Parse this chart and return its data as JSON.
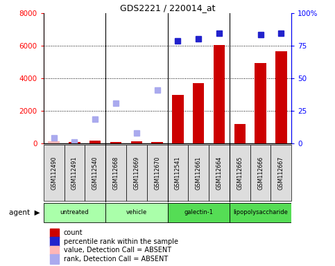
{
  "title": "GDS2221 / 220014_at",
  "samples": [
    "GSM112490",
    "GSM112491",
    "GSM112540",
    "GSM112668",
    "GSM112669",
    "GSM112670",
    "GSM112541",
    "GSM112661",
    "GSM112664",
    "GSM112665",
    "GSM112666",
    "GSM112667"
  ],
  "count_values": [
    150,
    80,
    200,
    80,
    150,
    80,
    3000,
    3700,
    6050,
    1200,
    4950,
    5650
  ],
  "count_absent": [
    true,
    false,
    false,
    false,
    false,
    false,
    false,
    false,
    false,
    false,
    false,
    false
  ],
  "percentile_values": [
    null,
    null,
    null,
    null,
    null,
    null,
    79.0,
    80.5,
    84.5,
    null,
    83.5,
    84.5
  ],
  "rank_absent_values": [
    4.5,
    1.5,
    19.0,
    31.0,
    8.0,
    41.0,
    null,
    null,
    null,
    null,
    null,
    null
  ],
  "ylim_left": [
    0,
    8000
  ],
  "ylim_right": [
    0,
    100
  ],
  "yticks_left": [
    0,
    2000,
    4000,
    6000,
    8000
  ],
  "yticks_right": [
    0,
    25,
    50,
    75,
    100
  ],
  "left_tick_labels": [
    "0",
    "2000",
    "4000",
    "6000",
    "8000"
  ],
  "right_tick_labels": [
    "0",
    "25",
    "50",
    "75",
    "100%"
  ],
  "bar_color": "#CC0000",
  "bar_absent_color": "#FFB6B6",
  "dot_color": "#2222CC",
  "rank_absent_color": "#AAAAEE",
  "group_spans": [
    [
      0,
      2,
      "untreated",
      "#AAFFAA"
    ],
    [
      3,
      5,
      "vehicle",
      "#AAFFAA"
    ],
    [
      6,
      8,
      "galectin-1",
      "#55DD55"
    ],
    [
      9,
      11,
      "lipopolysaccharide",
      "#55DD55"
    ]
  ],
  "legend_items": [
    {
      "color": "#CC0000",
      "label": "count"
    },
    {
      "color": "#2222CC",
      "label": "percentile rank within the sample"
    },
    {
      "color": "#FFB6B6",
      "label": "value, Detection Call = ABSENT"
    },
    {
      "color": "#AAAAEE",
      "label": "rank, Detection Call = ABSENT"
    }
  ],
  "background_color": "#FFFFFF"
}
